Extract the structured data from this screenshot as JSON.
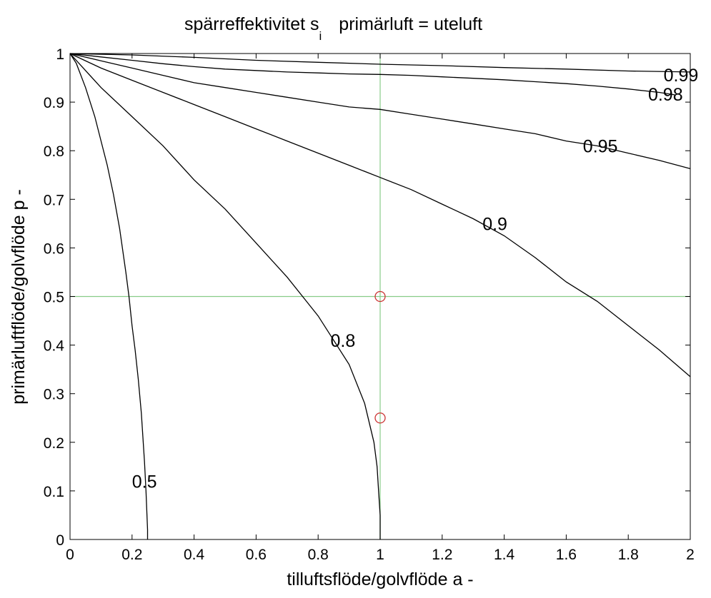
{
  "chart_data": {
    "type": "line",
    "title_main": "spärreffektivitet s",
    "title_subscript": "i",
    "title_right": "primärluft = uteluft",
    "xlabel": "tilluftsflöde/golvflöde a  -",
    "ylabel": "primärluftflöde/golvflöde p  -",
    "xlim": [
      0,
      2
    ],
    "ylim": [
      0,
      1
    ],
    "x_ticks": [
      "0",
      "0.2",
      "0.4",
      "0.6",
      "0.8",
      "1",
      "1.2",
      "1.4",
      "1.6",
      "1.8",
      "2"
    ],
    "y_ticks": [
      "0",
      "0.1",
      "0.2",
      "0.3",
      "0.4",
      "0.5",
      "0.6",
      "0.7",
      "0.8",
      "0.9",
      "1"
    ],
    "grid": false,
    "series": [
      {
        "name": "0.5",
        "label": "0.5",
        "label_at": [
          0.24,
          0.12
        ],
        "points": [
          [
            0,
            1
          ],
          [
            0.02,
            0.98
          ],
          [
            0.05,
            0.93
          ],
          [
            0.08,
            0.87
          ],
          [
            0.1,
            0.82
          ],
          [
            0.12,
            0.77
          ],
          [
            0.14,
            0.71
          ],
          [
            0.16,
            0.64
          ],
          [
            0.18,
            0.55
          ],
          [
            0.19,
            0.5
          ],
          [
            0.2,
            0.44
          ],
          [
            0.21,
            0.39
          ],
          [
            0.22,
            0.33
          ],
          [
            0.23,
            0.26
          ],
          [
            0.24,
            0.16
          ],
          [
            0.245,
            0.1
          ],
          [
            0.25,
            0.02
          ],
          [
            0.25,
            0
          ]
        ]
      },
      {
        "name": "0.8",
        "label": "0.8",
        "label_at": [
          0.88,
          0.41
        ],
        "points": [
          [
            0,
            1
          ],
          [
            0.1,
            0.93
          ],
          [
            0.2,
            0.87
          ],
          [
            0.3,
            0.81
          ],
          [
            0.4,
            0.74
          ],
          [
            0.5,
            0.68
          ],
          [
            0.6,
            0.61
          ],
          [
            0.7,
            0.54
          ],
          [
            0.75,
            0.5
          ],
          [
            0.8,
            0.46
          ],
          [
            0.9,
            0.36
          ],
          [
            0.95,
            0.28
          ],
          [
            0.98,
            0.2
          ],
          [
            0.99,
            0.15
          ],
          [
            0.995,
            0.1
          ],
          [
            1.0,
            0.05
          ],
          [
            1.0,
            0
          ]
        ]
      },
      {
        "name": "0.9",
        "label": "0.9",
        "label_at": [
          1.37,
          0.65
        ],
        "points": [
          [
            0,
            1
          ],
          [
            0.1,
            0.97
          ],
          [
            0.2,
            0.945
          ],
          [
            0.3,
            0.92
          ],
          [
            0.4,
            0.895
          ],
          [
            0.5,
            0.87
          ],
          [
            0.6,
            0.845
          ],
          [
            0.7,
            0.82
          ],
          [
            0.8,
            0.795
          ],
          [
            0.9,
            0.77
          ],
          [
            1.0,
            0.745
          ],
          [
            1.1,
            0.72
          ],
          [
            1.2,
            0.69
          ],
          [
            1.3,
            0.66
          ],
          [
            1.4,
            0.625
          ],
          [
            1.5,
            0.58
          ],
          [
            1.6,
            0.53
          ],
          [
            1.7,
            0.49
          ],
          [
            1.8,
            0.44
          ],
          [
            1.9,
            0.39
          ],
          [
            2.0,
            0.335
          ]
        ]
      },
      {
        "name": "0.95",
        "label": "0.95",
        "label_at": [
          1.71,
          0.81
        ],
        "points": [
          [
            0,
            1
          ],
          [
            0.1,
            0.985
          ],
          [
            0.2,
            0.97
          ],
          [
            0.3,
            0.955
          ],
          [
            0.4,
            0.94
          ],
          [
            0.5,
            0.93
          ],
          [
            0.6,
            0.92
          ],
          [
            0.7,
            0.91
          ],
          [
            0.8,
            0.9
          ],
          [
            0.9,
            0.89
          ],
          [
            1.0,
            0.885
          ],
          [
            1.1,
            0.875
          ],
          [
            1.2,
            0.865
          ],
          [
            1.3,
            0.855
          ],
          [
            1.4,
            0.845
          ],
          [
            1.5,
            0.835
          ],
          [
            1.6,
            0.82
          ],
          [
            1.7,
            0.81
          ],
          [
            1.8,
            0.795
          ],
          [
            1.9,
            0.78
          ],
          [
            2.0,
            0.763
          ]
        ]
      },
      {
        "name": "0.98",
        "label": "0.98",
        "label_at": [
          1.92,
          0.916
        ],
        "points": [
          [
            0,
            1
          ],
          [
            0.1,
            0.993
          ],
          [
            0.2,
            0.986
          ],
          [
            0.3,
            0.979
          ],
          [
            0.4,
            0.973
          ],
          [
            0.5,
            0.968
          ],
          [
            0.6,
            0.965
          ],
          [
            0.7,
            0.962
          ],
          [
            0.8,
            0.96
          ],
          [
            0.9,
            0.958
          ],
          [
            1.0,
            0.957
          ],
          [
            1.1,
            0.955
          ],
          [
            1.2,
            0.952
          ],
          [
            1.3,
            0.949
          ],
          [
            1.4,
            0.946
          ],
          [
            1.5,
            0.942
          ],
          [
            1.6,
            0.938
          ],
          [
            1.7,
            0.933
          ],
          [
            1.8,
            0.927
          ],
          [
            1.9,
            0.92
          ],
          [
            1.95,
            0.915
          ]
        ]
      },
      {
        "name": "0.99",
        "label": "0.99",
        "label_at": [
          1.97,
          0.956
        ],
        "points": [
          [
            0,
            1
          ],
          [
            0.2,
            0.997
          ],
          [
            0.4,
            0.992
          ],
          [
            0.6,
            0.986
          ],
          [
            0.8,
            0.982
          ],
          [
            1.0,
            0.978
          ],
          [
            1.2,
            0.975
          ],
          [
            1.4,
            0.971
          ],
          [
            1.6,
            0.968
          ],
          [
            1.8,
            0.964
          ],
          [
            2.0,
            0.962
          ]
        ]
      }
    ],
    "reference_lines": {
      "x": 1.0,
      "y": 0.5
    },
    "markers": [
      {
        "x": 1.0,
        "y": 0.5
      },
      {
        "x": 1.0,
        "y": 0.25
      }
    ],
    "colors": {
      "curves": "#000000",
      "reference": "#88cc88",
      "markers": "#cc3333"
    }
  }
}
